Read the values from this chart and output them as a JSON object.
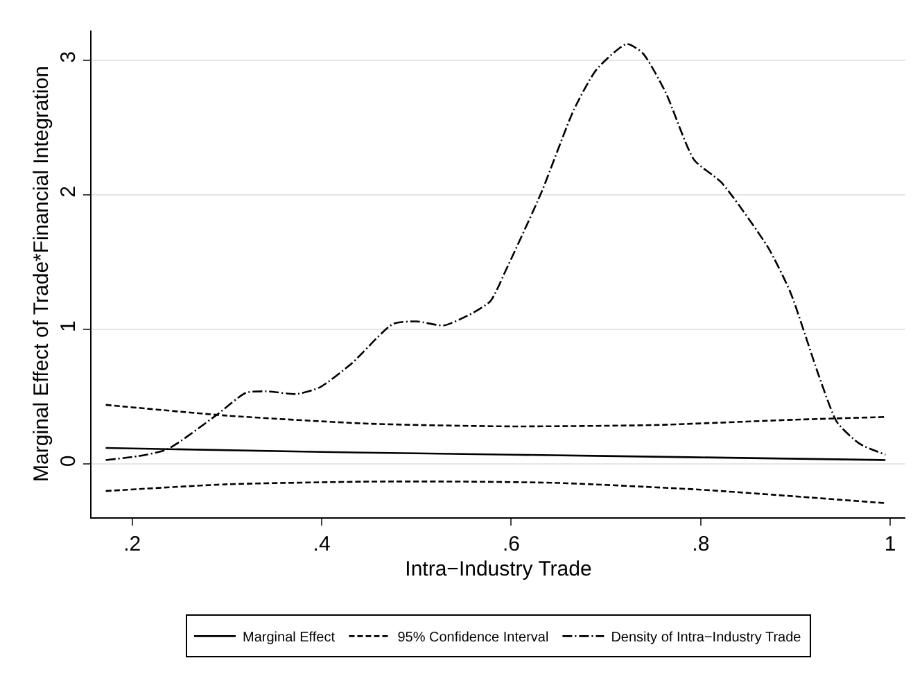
{
  "chart_data": {
    "type": "line",
    "xlabel": "Intra−Industry Trade",
    "ylabel": "Marginal Effect of Trade*Financial Integration",
    "xlim": [
      0.157,
      1.016
    ],
    "ylim": [
      -0.395,
      3.22
    ],
    "xticks": [
      {
        "value": 0.2,
        "label": ".2"
      },
      {
        "value": 0.4,
        "label": ".4"
      },
      {
        "value": 0.6,
        "label": ".6"
      },
      {
        "value": 0.8,
        "label": ".8"
      },
      1
    ],
    "yticks": [
      0,
      1,
      2,
      3
    ],
    "grid": "y",
    "legend": "bottom",
    "marker": "none",
    "series": [
      {
        "name": "Marginal Effect",
        "color": "#000000",
        "line_style": "solid",
        "x": [
          0.172,
          0.4,
          0.6,
          0.8,
          0.995
        ],
        "values": [
          0.12,
          0.09,
          0.07,
          0.05,
          0.03
        ]
      },
      {
        "name": "95% Confidence Interval",
        "color": "#000000",
        "line_style": "dashed",
        "x": [
          0.172,
          0.3,
          0.45,
          0.6,
          0.75,
          0.9,
          0.995
        ],
        "values": [
          0.44,
          0.36,
          0.3,
          0.28,
          0.29,
          0.33,
          0.35
        ]
      },
      {
        "color": "#000000",
        "line_style": "dashed",
        "x": [
          0.172,
          0.3,
          0.45,
          0.55,
          0.65,
          0.8,
          0.9,
          0.995
        ],
        "values": [
          -0.2,
          -0.15,
          -0.13,
          -0.13,
          -0.14,
          -0.19,
          -0.24,
          -0.29
        ]
      },
      {
        "name": "Density of Intra−Industry Trade",
        "color": "#000000",
        "line_style": "dashdot",
        "x": [
          0.172,
          0.207,
          0.237,
          0.29,
          0.32,
          0.344,
          0.373,
          0.398,
          0.432,
          0.475,
          0.5,
          0.529,
          0.556,
          0.578,
          0.595,
          0.632,
          0.666,
          0.69,
          0.722,
          0.739,
          0.763,
          0.793,
          0.822,
          0.871,
          0.895,
          0.924,
          0.944,
          0.968,
          0.995
        ],
        "values": [
          0.03,
          0.06,
          0.11,
          0.37,
          0.53,
          0.54,
          0.52,
          0.57,
          0.75,
          1.04,
          1.06,
          1.03,
          1.11,
          1.21,
          1.45,
          2.02,
          2.63,
          2.93,
          3.12,
          3.05,
          2.76,
          2.26,
          2.09,
          1.61,
          1.27,
          0.67,
          0.31,
          0.15,
          0.07
        ]
      }
    ]
  }
}
